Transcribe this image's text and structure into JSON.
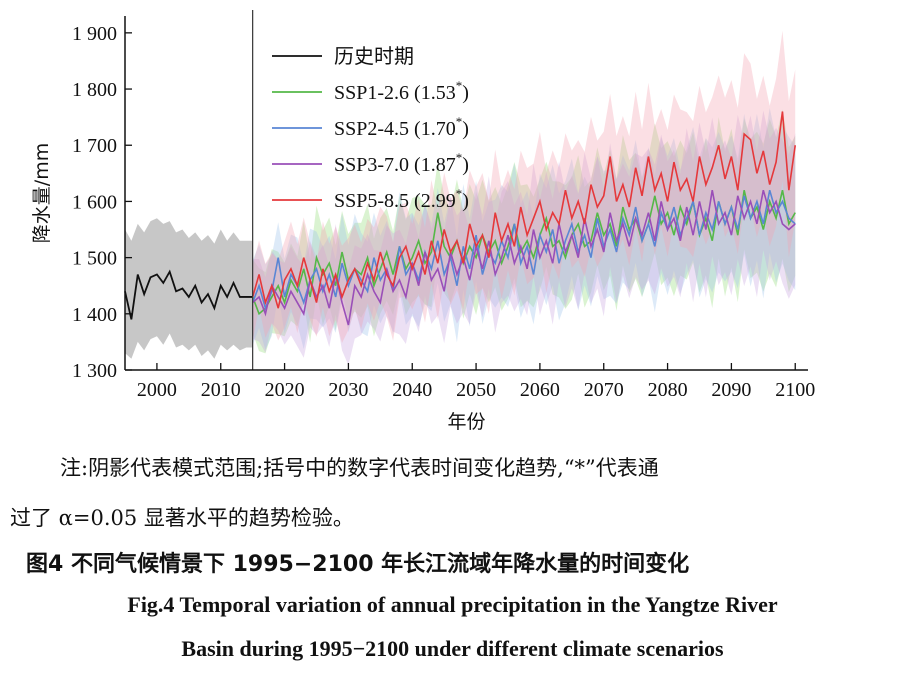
{
  "chart_data": {
    "type": "line",
    "xlabel": "年份",
    "ylabel": "降水量/mm",
    "xlim": [
      1995,
      2102
    ],
    "ylim": [
      1300,
      1930
    ],
    "xticks": [
      2000,
      2010,
      2020,
      2030,
      2040,
      2050,
      2060,
      2070,
      2080,
      2090,
      2100
    ],
    "xtick_labels": [
      "2000",
      "2010",
      "2020",
      "2030",
      "2040",
      "2050",
      "2060",
      "2070",
      "2080",
      "2090",
      "2100"
    ],
    "yticks": [
      1300,
      1400,
      1500,
      1600,
      1700,
      1800,
      1900
    ],
    "ytick_labels": [
      "1 300",
      "1 400",
      "1 500",
      "1 600",
      "1 700",
      "1 800",
      "1 900"
    ],
    "divider_x": 2015,
    "legend_position": "top-left",
    "grid": false,
    "historical": {
      "label": "历史时期",
      "color": "#111111",
      "band_color": "#bdbdbd",
      "x": [
        1995,
        1996,
        1997,
        1998,
        1999,
        2000,
        2001,
        2002,
        2003,
        2004,
        2005,
        2006,
        2007,
        2008,
        2009,
        2010,
        2011,
        2012,
        2013,
        2014,
        2015
      ],
      "y": [
        1440,
        1390,
        1470,
        1435,
        1465,
        1470,
        1455,
        1475,
        1440,
        1445,
        1430,
        1450,
        1420,
        1435,
        1410,
        1450,
        1430,
        1455,
        1430,
        1430,
        1430
      ],
      "lower": [
        1330,
        1320,
        1350,
        1335,
        1355,
        1360,
        1345,
        1365,
        1340,
        1345,
        1335,
        1345,
        1325,
        1335,
        1320,
        1345,
        1335,
        1345,
        1335,
        1340,
        1340
      ],
      "upper": [
        1550,
        1530,
        1560,
        1545,
        1565,
        1570,
        1560,
        1565,
        1545,
        1550,
        1535,
        1545,
        1530,
        1540,
        1525,
        1550,
        1530,
        1545,
        1530,
        1530,
        1530
      ]
    },
    "series": [
      {
        "name": "SSP1-2.6",
        "trend": "(1.53",
        "color": "#55b848",
        "band_color": "#95dd7a",
        "x_start": 2015,
        "y": [
          1430,
          1400,
          1410,
          1430,
          1450,
          1420,
          1460,
          1440,
          1480,
          1430,
          1500,
          1470,
          1490,
          1450,
          1510,
          1460,
          1480,
          1470,
          1500,
          1450,
          1480,
          1510,
          1470,
          1520,
          1480,
          1500,
          1530,
          1490,
          1510,
          1580,
          1520,
          1500,
          1530,
          1490,
          1520,
          1500,
          1540,
          1510,
          1530,
          1490,
          1520,
          1560,
          1510,
          1530,
          1500,
          1540,
          1570,
          1520,
          1530,
          1500,
          1540,
          1560,
          1520,
          1530,
          1580,
          1540,
          1560,
          1520,
          1590,
          1550,
          1570,
          1530,
          1560,
          1610,
          1560,
          1580,
          1540,
          1590,
          1560,
          1600,
          1540,
          1570,
          1530,
          1600,
          1560,
          1590,
          1540,
          1620,
          1570,
          1590,
          1550,
          1600,
          1570,
          1620,
          1560,
          1580
        ]
      },
      {
        "name": "SSP2-4.5",
        "trend": "(1.70",
        "color": "#5a86d4",
        "band_color": "#9ec3ec",
        "x_start": 2015,
        "y": [
          1420,
          1450,
          1410,
          1440,
          1500,
          1430,
          1470,
          1450,
          1420,
          1460,
          1480,
          1440,
          1470,
          1430,
          1490,
          1450,
          1480,
          1460,
          1440,
          1500,
          1460,
          1480,
          1440,
          1520,
          1470,
          1490,
          1460,
          1510,
          1480,
          1530,
          1470,
          1500,
          1450,
          1520,
          1480,
          1540,
          1470,
          1510,
          1490,
          1530,
          1500,
          1560,
          1490,
          1520,
          1470,
          1540,
          1510,
          1550,
          1490,
          1530,
          1560,
          1510,
          1540,
          1500,
          1570,
          1520,
          1550,
          1510,
          1570,
          1540,
          1590,
          1530,
          1560,
          1520,
          1580,
          1550,
          1590,
          1540,
          1570,
          1600,
          1540,
          1580,
          1550,
          1600,
          1560,
          1590,
          1550,
          1610,
          1570,
          1600,
          1560,
          1620,
          1580,
          1600,
          1570,
          1560
        ]
      },
      {
        "name": "SSP3-7.0",
        "trend": "(1.87",
        "color": "#9a4fb8",
        "band_color": "#c9a6df",
        "x_start": 2015,
        "y": [
          1420,
          1430,
          1400,
          1450,
          1430,
          1410,
          1440,
          1420,
          1400,
          1460,
          1430,
          1450,
          1410,
          1470,
          1420,
          1380,
          1450,
          1430,
          1470,
          1440,
          1420,
          1480,
          1440,
          1460,
          1430,
          1490,
          1450,
          1510,
          1460,
          1480,
          1440,
          1510,
          1470,
          1500,
          1460,
          1520,
          1480,
          1530,
          1470,
          1500,
          1540,
          1490,
          1520,
          1480,
          1550,
          1500,
          1530,
          1490,
          1560,
          1510,
          1540,
          1500,
          1570,
          1520,
          1550,
          1510,
          1580,
          1530,
          1560,
          1520,
          1570,
          1540,
          1580,
          1530,
          1600,
          1550,
          1570,
          1530,
          1590,
          1540,
          1600,
          1550,
          1620,
          1560,
          1580,
          1540,
          1610,
          1570,
          1600,
          1560,
          1620,
          1580,
          1600,
          1560,
          1550,
          1560
        ]
      },
      {
        "name": "SSP5-8.5",
        "trend": "(2.99",
        "color": "#e5383b",
        "band_color": "#f4a4b1",
        "x_start": 2015,
        "y": [
          1430,
          1470,
          1420,
          1450,
          1410,
          1460,
          1480,
          1450,
          1500,
          1460,
          1420,
          1480,
          1440,
          1470,
          1430,
          1460,
          1480,
          1450,
          1490,
          1460,
          1510,
          1470,
          1450,
          1500,
          1520,
          1480,
          1510,
          1470,
          1530,
          1490,
          1550,
          1510,
          1530,
          1490,
          1560,
          1520,
          1540,
          1500,
          1580,
          1530,
          1560,
          1520,
          1590,
          1540,
          1570,
          1600,
          1550,
          1580,
          1560,
          1620,
          1570,
          1600,
          1560,
          1630,
          1590,
          1610,
          1680,
          1600,
          1630,
          1590,
          1660,
          1610,
          1680,
          1620,
          1650,
          1600,
          1670,
          1620,
          1640,
          1600,
          1680,
          1630,
          1660,
          1700,
          1640,
          1680,
          1620,
          1720,
          1710,
          1650,
          1690,
          1630,
          1670,
          1760,
          1620,
          1700
        ]
      }
    ],
    "legend_trend_close": ")",
    "legend_star": "*"
  },
  "captions": {
    "note_line1": "注:阴影代表模式范围;括号中的数字代表时间变化趋势,“*”代表通",
    "note_line2": "过了 α=0.05 显著水平的趋势检验。",
    "figure_title_zh": "图4   不同气候情景下 1995−2100 年长江流域年降水量的时间变化",
    "figure_title_en_line1": "Fig.4 Temporal variation of annual precipitation in the Yangtze River",
    "figure_title_en_line2": "Basin during 1995−2100 under different climate scenarios"
  }
}
